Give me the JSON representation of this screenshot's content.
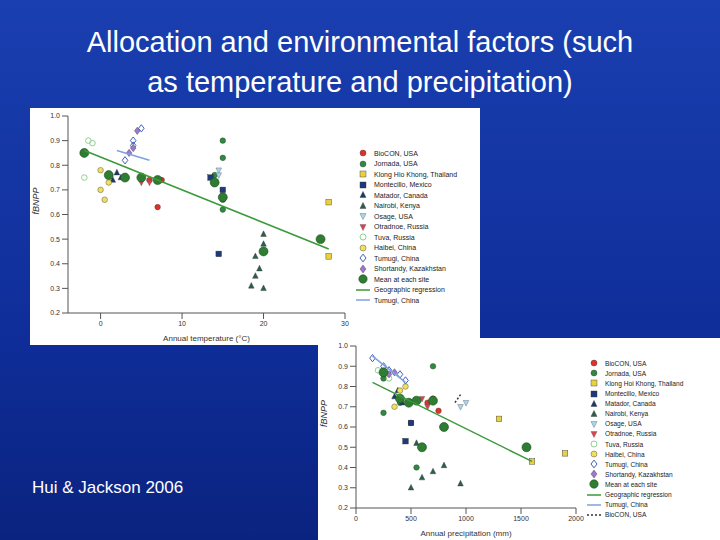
{
  "title_lines": [
    "Allocation and environmental factors (such",
    "as temperature and precipitation)"
  ],
  "citation": "Hui & Jackson 2006",
  "chart_data": [
    {
      "type": "scatter",
      "x_label": "Annual temperature (°C)",
      "y_label": "fBNPP",
      "xlim": [
        -4,
        30
      ],
      "xticks": [
        0,
        10,
        20,
        30
      ],
      "ylim": [
        0.2,
        1.0
      ],
      "yticks": [
        0.2,
        0.3,
        0.4,
        0.5,
        0.6,
        0.7,
        0.8,
        0.9,
        {
          "value": 1.0,
          "label": "1.0"
        }
      ],
      "series": [
        {
          "name": "BioCON, USA",
          "color": "#e0302a",
          "marker": "circle",
          "x": [
            7,
            7.5,
            6
          ],
          "values": [
            0.63,
            0.74,
            0.74
          ]
        },
        {
          "name": "Jornada, USA",
          "color": "#2e8b3e",
          "marker": "circle",
          "x": [
            15,
            15,
            14,
            15,
            15
          ],
          "values": [
            0.9,
            0.83,
            0.76,
            0.62,
            0.66
          ]
        },
        {
          "name": "Klong Hio Khong, Thailand",
          "color": "#e8d040",
          "marker": "square",
          "x": [
            28,
            27,
            28
          ],
          "values": [
            0.65,
            0.5,
            0.43
          ]
        },
        {
          "name": "Montecillo, Mexico",
          "color": "#1f3a7a",
          "marker": "square",
          "x": [
            14,
            14.5,
            13.5,
            15
          ],
          "values": [
            0.73,
            0.44,
            0.75,
            0.7
          ]
        },
        {
          "name": "Matador, Canada",
          "color": "#1a3a6b",
          "marker": "triangle",
          "x": [
            1.5,
            2,
            2.5
          ],
          "values": [
            0.74,
            0.77,
            0.75
          ]
        },
        {
          "name": "Nairobi, Kenya",
          "color": "#2e5e4e",
          "marker": "triangle",
          "x": [
            19,
            19.5,
            20,
            19,
            20,
            18.5,
            20
          ],
          "values": [
            0.35,
            0.38,
            0.52,
            0.43,
            0.3,
            0.31,
            0.48
          ]
        },
        {
          "name": "Osage, USA",
          "color": "#a8d8f0",
          "marker": "triangle_down",
          "x": [
            14.5,
            14.5
          ],
          "values": [
            0.78,
            0.76
          ]
        },
        {
          "name": "Otradnoe, Russia",
          "color": "#e04050",
          "marker": "triangle_down",
          "x": [
            5,
            6
          ],
          "values": [
            0.73,
            0.73
          ]
        },
        {
          "name": "Tuva, Russia",
          "color": "#90d090",
          "marker": "open_circle",
          "x": [
            -2,
            -1.5,
            -1
          ],
          "values": [
            0.75,
            0.9,
            0.89
          ]
        },
        {
          "name": "Haibei, China",
          "color": "#f0e060",
          "marker": "circle",
          "x": [
            0,
            0.5,
            0,
            1
          ],
          "values": [
            0.7,
            0.66,
            0.78,
            0.73
          ]
        },
        {
          "name": "Tumugi, China",
          "color": "#4060c0",
          "marker": "open_diamond",
          "x": [
            3,
            4,
            5,
            4
          ],
          "values": [
            0.82,
            0.88,
            0.95,
            0.9
          ]
        },
        {
          "name": "Shortandy, Kazakhstan",
          "color": "#9a7ad0",
          "marker": "diamond",
          "x": [
            4,
            4.5,
            3.5
          ],
          "values": [
            0.87,
            0.94,
            0.85
          ]
        },
        {
          "name": "Mean at each site",
          "color": "#2e7d32",
          "marker": "big_circle",
          "x": [
            -2,
            1,
            3,
            5,
            7,
            14,
            15,
            20,
            27
          ],
          "values": [
            0.85,
            0.76,
            0.75,
            0.75,
            0.74,
            0.73,
            0.67,
            0.45,
            0.5
          ]
        },
        {
          "name": "Geographic regression",
          "color": "#3a9a3a",
          "type": "line",
          "line_style": "solid",
          "x": [
            -2,
            28
          ],
          "values": [
            0.86,
            0.46
          ]
        },
        {
          "name": "Tumugi, China",
          "color": "#80a0e0",
          "type": "line",
          "line_style": "solid",
          "x": [
            2,
            6
          ],
          "values": [
            0.86,
            0.82
          ]
        }
      ]
    },
    {
      "type": "scatter",
      "x_label": "Annual precipitation (mm)",
      "y_label": "fBNPP",
      "xlim": [
        0,
        2000
      ],
      "xticks": [
        0,
        500,
        1000,
        1500,
        2000
      ],
      "ylim": [
        0.2,
        1.0
      ],
      "yticks": [
        0.2,
        0.3,
        0.4,
        0.5,
        0.6,
        0.7,
        0.8,
        0.9,
        {
          "value": 1.0,
          "label": "1.0"
        }
      ],
      "series": [
        {
          "name": "BioCON, USA",
          "color": "#e0302a",
          "marker": "circle",
          "x": [
            650,
            700,
            750
          ],
          "values": [
            0.72,
            0.74,
            0.68
          ]
        },
        {
          "name": "Jornada, USA",
          "color": "#2e8b3e",
          "marker": "circle",
          "x": [
            250,
            250,
            400,
            500,
            550,
            700
          ],
          "values": [
            0.67,
            0.84,
            0.72,
            0.62,
            0.4,
            0.9
          ]
        },
        {
          "name": "Klong Hoi Khong, Thailand",
          "color": "#e8d040",
          "marker": "square",
          "x": [
            1300,
            1550,
            1600,
            1900
          ],
          "values": [
            0.64,
            0.5,
            0.43,
            0.47
          ]
        },
        {
          "name": "Montecillo, Mexico",
          "color": "#1f3a7a",
          "marker": "square",
          "x": [
            450,
            500,
            550
          ],
          "values": [
            0.53,
            0.62,
            0.73
          ]
        },
        {
          "name": "Matador, Canada",
          "color": "#1a3a6b",
          "marker": "triangle",
          "x": [
            350,
            420,
            380
          ],
          "values": [
            0.75,
            0.72,
            0.78
          ]
        },
        {
          "name": "Nairobi, Kenya",
          "color": "#2e5e4e",
          "marker": "triangle",
          "x": [
            500,
            600,
            550,
            700,
            800,
            950
          ],
          "values": [
            0.3,
            0.35,
            0.52,
            0.38,
            0.41,
            0.32
          ]
        },
        {
          "name": "Osage, USA",
          "color": "#a8d8f0",
          "marker": "triangle_down",
          "x": [
            950,
            1000
          ],
          "values": [
            0.7,
            0.72
          ]
        },
        {
          "name": "Otradnoe, Russia",
          "color": "#e04050",
          "marker": "triangle_down",
          "x": [
            600,
            650
          ],
          "values": [
            0.74,
            0.7
          ]
        },
        {
          "name": "Tuva, Russia",
          "color": "#90d090",
          "marker": "open_circle",
          "x": [
            200,
            300
          ],
          "values": [
            0.88,
            0.84
          ]
        },
        {
          "name": "Haibei, China",
          "color": "#f0e060",
          "marker": "circle",
          "x": [
            400,
            450,
            350
          ],
          "values": [
            0.78,
            0.8,
            0.7
          ]
        },
        {
          "name": "Tumugi, China",
          "color": "#4060c0",
          "marker": "open_diamond",
          "x": [
            150,
            250,
            300,
            400,
            450
          ],
          "values": [
            0.94,
            0.9,
            0.88,
            0.86,
            0.83
          ]
        },
        {
          "name": "Shortandy, Kazakhstan",
          "color": "#9a7ad0",
          "marker": "diamond",
          "x": [
            300,
            350
          ],
          "values": [
            0.86,
            0.87
          ]
        },
        {
          "name": "Mean at each site",
          "color": "#2e7d32",
          "marker": "big_circle",
          "x": [
            250,
            400,
            480,
            550,
            600,
            700,
            800,
            1550
          ],
          "values": [
            0.87,
            0.74,
            0.72,
            0.73,
            0.5,
            0.73,
            0.6,
            0.5
          ]
        },
        {
          "name": "Geographic regression",
          "color": "#3a9a3a",
          "type": "line",
          "line_style": "solid",
          "x": [
            150,
            1600
          ],
          "values": [
            0.82,
            0.43
          ]
        },
        {
          "name": "Tumugi, China",
          "color": "#80a0e0",
          "type": "line",
          "line_style": "solid",
          "x": [
            150,
            450
          ],
          "values": [
            0.95,
            0.82
          ]
        },
        {
          "name": "BioCON, USA",
          "color": "#333333",
          "type": "line",
          "line_style": "dotted",
          "x": [
            900,
            950
          ],
          "values": [
            0.72,
            0.76
          ]
        }
      ]
    }
  ]
}
